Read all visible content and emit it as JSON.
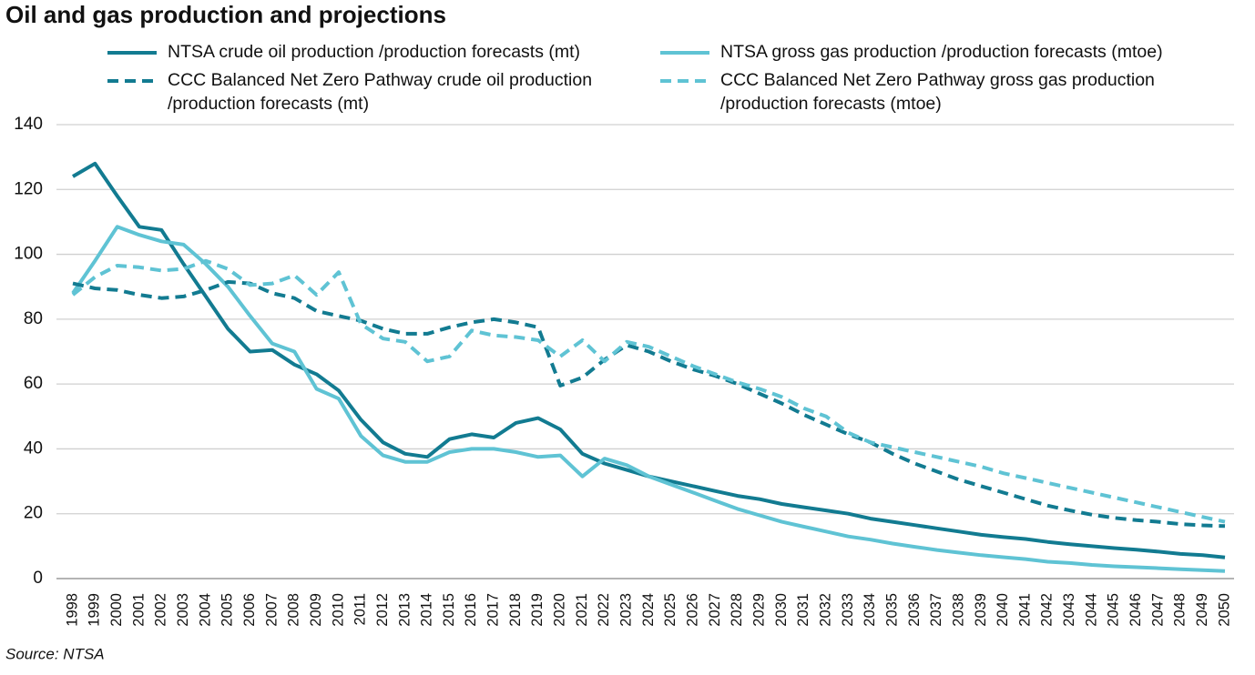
{
  "chart_data": {
    "type": "line",
    "title": "Oil and gas production and projections",
    "source": "Source: NTSA",
    "categories": [
      "1998",
      "1999",
      "2000",
      "2001",
      "2002",
      "2003",
      "2004",
      "2005",
      "2006",
      "2007",
      "2008",
      "2009",
      "2010",
      "2011",
      "2012",
      "2013",
      "2014",
      "2015",
      "2016",
      "2017",
      "2018",
      "2019",
      "2020",
      "2021",
      "2022",
      "2023",
      "2024",
      "2025",
      "2026",
      "2027",
      "2028",
      "2029",
      "2030",
      "2031",
      "2032",
      "2033",
      "2034",
      "2035",
      "2036",
      "2037",
      "2038",
      "2039",
      "2040",
      "2041",
      "2042",
      "2043",
      "2044",
      "2045",
      "2046",
      "2047",
      "2048",
      "2049",
      "2050"
    ],
    "series": [
      {
        "name": "NTSA crude oil production /production forecasts (mt)",
        "color": "#127b91",
        "style": "solid",
        "values": [
          124,
          128,
          118,
          108.5,
          107.5,
          97,
          87,
          77,
          70,
          70.5,
          66,
          63,
          58,
          49,
          42,
          38.5,
          37.5,
          43,
          44.5,
          43.5,
          48,
          49.5,
          46,
          38.5,
          35.5,
          33.5,
          31.5,
          30,
          28.5,
          27,
          25.5,
          24.5,
          23,
          22,
          21,
          20,
          18.5,
          17.5,
          16.5,
          15.5,
          14.5,
          13.5,
          12.8,
          12.2,
          11.3,
          10.6,
          10,
          9.4,
          8.9,
          8.3,
          7.6,
          7.2,
          6.5
        ]
      },
      {
        "name": "NTSA gross gas production /production forecasts (mtoe)",
        "color": "#5fc3d4",
        "style": "solid",
        "values": [
          88,
          98,
          108.5,
          106,
          104,
          103,
          97,
          90,
          81,
          72.5,
          70,
          58.5,
          55.5,
          44,
          38,
          36,
          36,
          39,
          40,
          40,
          39,
          37.5,
          38,
          31.5,
          37,
          35,
          31.5,
          29,
          26.5,
          24,
          21.5,
          19.5,
          17.5,
          16,
          14.5,
          13,
          12,
          10.8,
          9.8,
          8.8,
          8,
          7.2,
          6.6,
          6,
          5.2,
          4.8,
          4.2,
          3.8,
          3.5,
          3.2,
          2.9,
          2.6,
          2.3
        ]
      },
      {
        "name": "CCC Balanced Net Zero Pathway crude oil production /production forecasts (mt)",
        "color": "#127b91",
        "style": "dashed",
        "values": [
          91,
          89.5,
          89,
          87.5,
          86.5,
          87,
          89,
          91.5,
          91,
          88,
          86.5,
          82.5,
          81,
          79.5,
          77,
          75.5,
          75.5,
          77.5,
          79,
          80,
          79,
          77.5,
          59.5,
          62,
          67.5,
          72,
          70,
          67,
          64.5,
          62.5,
          60,
          57,
          54,
          50.5,
          47.5,
          44.5,
          42,
          38.5,
          35.5,
          33,
          30.5,
          28.5,
          26.5,
          24.5,
          22.5,
          21,
          19.7,
          18.7,
          18,
          17.5,
          16.8,
          16.4,
          16.2
        ]
      },
      {
        "name": "CCC Balanced Net Zero Pathway gross gas production /production forecasts (mtoe)",
        "color": "#5fc3d4",
        "style": "dashed",
        "values": [
          87.5,
          93,
          96.5,
          96,
          95,
          95.5,
          98,
          95.5,
          90.5,
          91,
          93.5,
          87.5,
          94.5,
          78.5,
          74,
          73,
          67,
          68.5,
          76.5,
          75,
          74.5,
          73.5,
          68.5,
          73.5,
          67,
          73,
          71.5,
          68.5,
          65.5,
          63,
          60.5,
          58.5,
          56,
          52.5,
          50,
          45,
          42,
          40.5,
          39,
          37.5,
          36,
          34.5,
          32.5,
          31,
          29.5,
          28,
          26.5,
          25,
          23.5,
          22,
          20.5,
          19,
          17.5
        ]
      }
    ],
    "ylim": [
      0,
      140
    ],
    "yticks": [
      0,
      20,
      40,
      60,
      80,
      100,
      120,
      140
    ],
    "grid": true,
    "legend": "top"
  }
}
